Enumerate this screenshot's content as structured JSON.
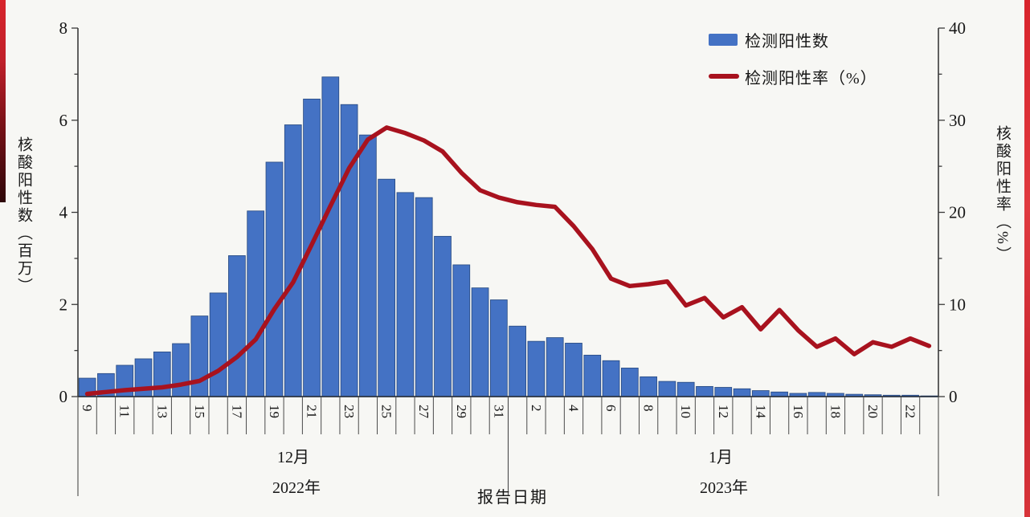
{
  "page": {
    "background": "#f7f7f4"
  },
  "legend": {
    "items": [
      {
        "label": "检测阳性数",
        "swatch": "bar"
      },
      {
        "label": "检测阳性率（%）",
        "swatch": "line"
      }
    ]
  },
  "chart_data": {
    "type": "bar",
    "subtype": "bar+line dual axis",
    "title": "",
    "left_axis": {
      "title": "核酸阳性数（百万）",
      "range": [
        0,
        8
      ],
      "major_ticks": [
        0,
        2,
        4,
        6,
        8
      ],
      "minor_tick_step": 1
    },
    "right_axis": {
      "title": "核酸阳性率（%）",
      "range": [
        0,
        40
      ],
      "major_ticks": [
        0,
        10,
        20,
        30,
        40
      ],
      "minor_tick_step": 5
    },
    "x_axis": {
      "title": "报告日期",
      "groups": [
        {
          "month_label": "12月",
          "year_label": "2022年",
          "days": [
            9,
            10,
            11,
            12,
            13,
            14,
            15,
            16,
            17,
            18,
            19,
            20,
            21,
            22,
            23,
            24,
            25,
            26,
            27,
            28,
            29,
            30,
            31
          ],
          "labeled_days": [
            9,
            11,
            13,
            15,
            17,
            19,
            21,
            23,
            25,
            27,
            29,
            31
          ]
        },
        {
          "month_label": "1月",
          "year_label": "2023年",
          "days": [
            1,
            2,
            3,
            4,
            5,
            6,
            7,
            8,
            9,
            10,
            11,
            12,
            13,
            14,
            15,
            16,
            17,
            18,
            19,
            20,
            21,
            22,
            23
          ],
          "labeled_days": [
            2,
            4,
            6,
            8,
            10,
            12,
            14,
            16,
            18,
            20,
            22
          ]
        }
      ]
    },
    "series": [
      {
        "name": "检测阳性数",
        "type": "bar",
        "axis": "left",
        "unit": "million",
        "color": "#4472c4",
        "edge_color": "#27497f",
        "values": [
          0.4,
          0.5,
          0.68,
          0.82,
          0.97,
          1.15,
          1.75,
          2.25,
          3.06,
          4.03,
          5.09,
          5.9,
          6.46,
          6.94,
          6.34,
          5.68,
          4.72,
          4.43,
          4.32,
          3.48,
          2.86,
          2.36,
          2.1,
          1.53,
          1.2,
          1.28,
          1.16,
          0.9,
          0.78,
          0.62,
          0.43,
          0.33,
          0.31,
          0.22,
          0.2,
          0.17,
          0.13,
          0.1,
          0.07,
          0.09,
          0.07,
          0.05,
          0.04,
          0.03,
          0.03,
          0.015
        ]
      },
      {
        "name": "检测阳性率（%）",
        "type": "line",
        "axis": "right",
        "unit": "percent",
        "color": "#a8121e",
        "values": [
          0.3,
          0.5,
          0.7,
          0.85,
          1.0,
          1.3,
          1.7,
          2.8,
          4.3,
          6.2,
          9.5,
          12.4,
          16.5,
          20.7,
          24.8,
          27.9,
          29.2,
          28.6,
          27.8,
          26.6,
          24.3,
          22.4,
          21.6,
          21.1,
          20.8,
          20.6,
          18.5,
          16.0,
          12.8,
          12.0,
          12.2,
          12.5,
          9.9,
          10.7,
          8.6,
          9.7,
          7.3,
          9.4,
          7.2,
          5.4,
          6.3,
          4.6,
          5.9,
          5.4,
          6.3,
          5.5
        ]
      }
    ],
    "annotations": {
      "peak_bar": {
        "date": "12月22日",
        "value_million": 6.94
      },
      "peak_rate": {
        "date": "12月25日",
        "value_percent": 29.2
      }
    },
    "grid": "off",
    "legend_position": "top-right"
  }
}
